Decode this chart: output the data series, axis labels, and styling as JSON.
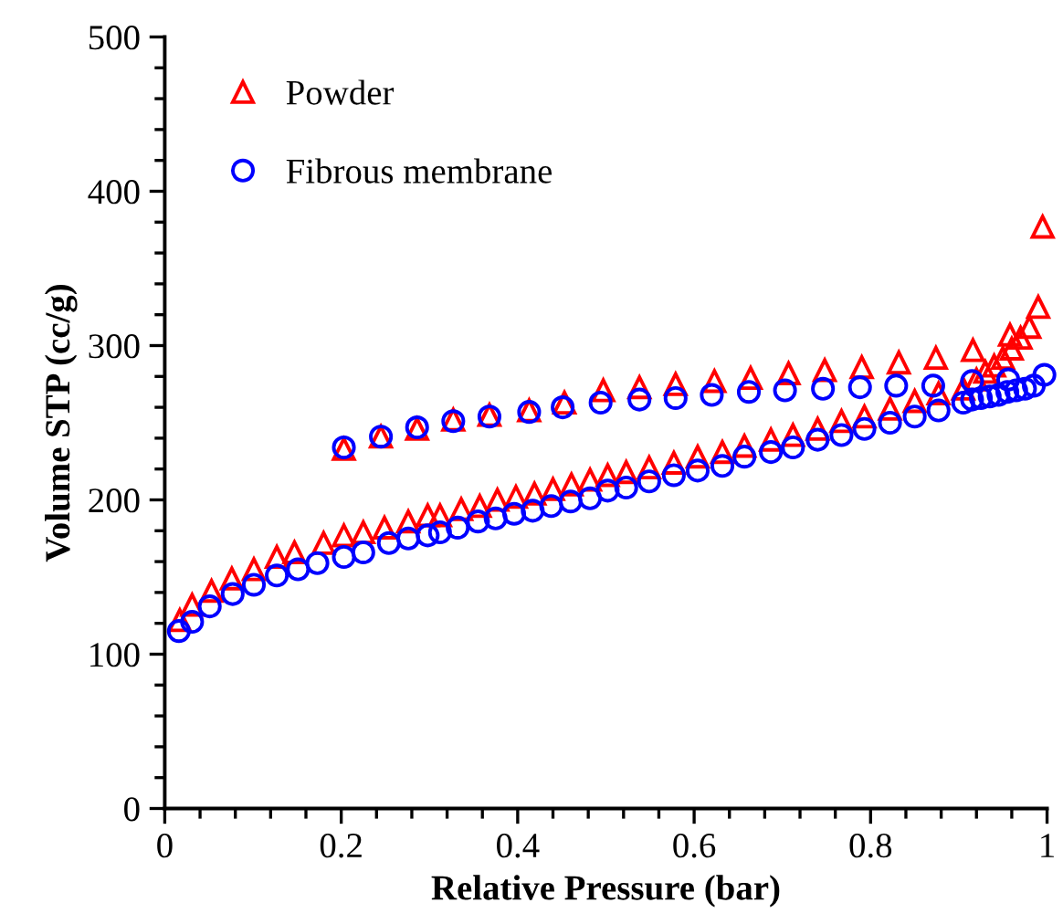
{
  "chart_data": {
    "type": "scatter",
    "xlabel": "Relative Pressure (bar)",
    "ylabel": "Volume STP (cc/g)",
    "xlim": [
      0,
      1
    ],
    "ylim": [
      0,
      500
    ],
    "xticks": [
      0,
      {
        "value": 0.04,
        "label": null
      },
      {
        "value": 0.08,
        "label": null
      },
      {
        "value": 0.12,
        "label": null
      },
      {
        "value": 0.16,
        "label": null
      },
      0.2,
      {
        "value": 0.24,
        "label": null
      },
      {
        "value": 0.28,
        "label": null
      },
      {
        "value": 0.32,
        "label": null
      },
      {
        "value": 0.36,
        "label": null
      },
      0.4,
      {
        "value": 0.44,
        "label": null
      },
      {
        "value": 0.48,
        "label": null
      },
      {
        "value": 0.52,
        "label": null
      },
      {
        "value": 0.56,
        "label": null
      },
      0.6,
      {
        "value": 0.64,
        "label": null
      },
      {
        "value": 0.68,
        "label": null
      },
      {
        "value": 0.72,
        "label": null
      },
      {
        "value": 0.76,
        "label": null
      },
      0.8,
      {
        "value": 0.84,
        "label": null
      },
      {
        "value": 0.88,
        "label": null
      },
      {
        "value": 0.92,
        "label": null
      },
      {
        "value": 0.96,
        "label": null
      },
      1
    ],
    "yticks": [
      0,
      {
        "value": 20,
        "label": null
      },
      {
        "value": 40,
        "label": null
      },
      {
        "value": 60,
        "label": null
      },
      {
        "value": 80,
        "label": null
      },
      100,
      {
        "value": 120,
        "label": null
      },
      {
        "value": 140,
        "label": null
      },
      {
        "value": 160,
        "label": null
      },
      {
        "value": 180,
        "label": null
      },
      200,
      {
        "value": 220,
        "label": null
      },
      {
        "value": 240,
        "label": null
      },
      {
        "value": 260,
        "label": null
      },
      {
        "value": 280,
        "label": null
      },
      300,
      {
        "value": 320,
        "label": null
      },
      {
        "value": 340,
        "label": null
      },
      {
        "value": 360,
        "label": null
      },
      {
        "value": 380,
        "label": null
      },
      400,
      {
        "value": 420,
        "label": null
      },
      {
        "value": 440,
        "label": null
      },
      {
        "value": 460,
        "label": null
      },
      {
        "value": 480,
        "label": null
      },
      500
    ],
    "grid": false,
    "legend": "top left",
    "series": [
      {
        "name": "Powder",
        "color": "#ff0000",
        "marker": "triangle",
        "x": [
          0.017,
          0.031,
          0.053,
          0.076,
          0.101,
          0.127,
          0.147,
          0.18,
          0.203,
          0.225,
          0.249,
          0.276,
          0.298,
          0.312,
          0.336,
          0.357,
          0.377,
          0.398,
          0.419,
          0.44,
          0.461,
          0.482,
          0.502,
          0.523,
          0.549,
          0.577,
          0.604,
          0.632,
          0.657,
          0.687,
          0.712,
          0.74,
          0.767,
          0.793,
          0.822,
          0.85,
          0.877,
          0.905,
          0.92,
          0.93,
          0.94,
          0.95,
          0.96,
          0.97,
          0.98,
          0.99,
          0.995,
          0.958,
          0.916,
          0.874,
          0.832,
          0.79,
          0.748,
          0.707,
          0.664,
          0.623,
          0.579,
          0.538,
          0.497,
          0.453,
          0.413,
          0.368,
          0.327,
          0.286,
          0.245,
          0.203
        ],
        "values": [
          122,
          132,
          141,
          149,
          155,
          163,
          166,
          172,
          177,
          179,
          182,
          186,
          190,
          190,
          194,
          196,
          200,
          202,
          204,
          207,
          210,
          213,
          216,
          218,
          221,
          224,
          228,
          231,
          235,
          239,
          242,
          246,
          251,
          254,
          259,
          264,
          269,
          272,
          278,
          283,
          287,
          292,
          298,
          305,
          312,
          325,
          377,
          307,
          297,
          292,
          289,
          286,
          284,
          282,
          279,
          277,
          275,
          273,
          271,
          263,
          258,
          255,
          252,
          246,
          241,
          233
        ]
      },
      {
        "name": "Fibrous membrane",
        "color": "#0000ff",
        "marker": "circle",
        "x": [
          0.016,
          0.031,
          0.051,
          0.077,
          0.101,
          0.127,
          0.151,
          0.173,
          0.203,
          0.225,
          0.254,
          0.276,
          0.298,
          0.312,
          0.332,
          0.355,
          0.375,
          0.396,
          0.417,
          0.438,
          0.46,
          0.482,
          0.502,
          0.523,
          0.549,
          0.577,
          0.604,
          0.632,
          0.657,
          0.687,
          0.712,
          0.74,
          0.767,
          0.793,
          0.822,
          0.85,
          0.877,
          0.905,
          0.915,
          0.925,
          0.935,
          0.945,
          0.955,
          0.965,
          0.975,
          0.985,
          0.997,
          0.956,
          0.915,
          0.871,
          0.829,
          0.788,
          0.746,
          0.703,
          0.662,
          0.62,
          0.579,
          0.538,
          0.494,
          0.451,
          0.413,
          0.368,
          0.327,
          0.286,
          0.245,
          0.203
        ],
        "values": [
          115,
          121,
          131,
          139,
          145,
          151,
          155,
          159,
          163,
          166,
          172,
          175,
          177,
          179,
          182,
          186,
          188,
          191,
          193,
          196,
          199,
          201,
          206,
          208,
          212,
          216,
          219,
          222,
          228,
          231,
          234,
          239,
          242,
          246,
          250,
          254,
          258,
          263,
          265,
          266,
          267,
          268,
          270,
          271,
          272,
          274,
          281,
          278,
          277,
          274,
          274,
          273,
          272,
          271,
          270,
          268,
          266,
          265,
          263,
          260,
          257,
          254,
          251,
          247,
          241,
          234
        ]
      }
    ]
  }
}
